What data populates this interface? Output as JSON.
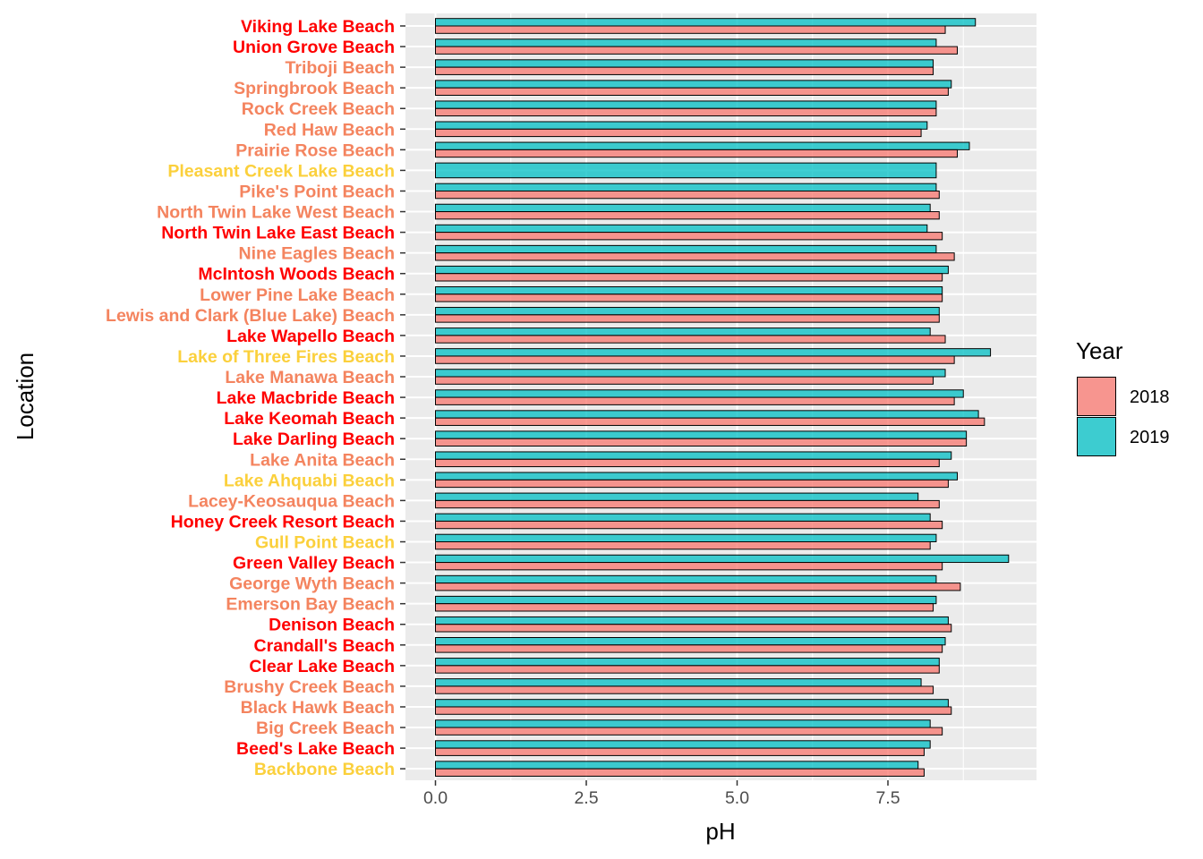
{
  "chart_data": {
    "type": "bar",
    "orientation": "horizontal",
    "xlabel": "pH",
    "ylabel": "Location",
    "xlim": [
      0,
      10
    ],
    "x_ticks": [
      "0.0",
      "2.5",
      "5.0",
      "7.5"
    ],
    "x_tick_values": [
      0,
      2.5,
      5,
      7.5
    ],
    "grid": true,
    "legend": {
      "title": "Year",
      "position": "right"
    },
    "colors": {
      "2018": "#F8766D",
      "2019": "#00BFC4",
      "label_red": "#FF0000",
      "label_salmon": "#F4845F",
      "label_yellow": "#FBD03C",
      "panel_bg": "#EBEBEB"
    },
    "categories": [
      "Viking Lake Beach",
      "Union Grove Beach",
      "Triboji Beach",
      "Springbrook Beach",
      "Rock Creek Beach",
      "Red Haw Beach",
      "Prairie Rose Beach",
      "Pleasant Creek Lake Beach",
      "Pike's Point Beach",
      "North Twin Lake West Beach",
      "North Twin Lake East Beach",
      "Nine Eagles Beach",
      "McIntosh Woods Beach",
      "Lower Pine Lake Beach",
      "Lewis and Clark (Blue Lake) Beach",
      "Lake Wapello Beach",
      "Lake of Three Fires Beach",
      "Lake Manawa Beach",
      "Lake Macbride Beach",
      "Lake Keomah Beach",
      "Lake Darling Beach",
      "Lake Anita Beach",
      "Lake Ahquabi Beach",
      "Lacey-Keosauqua Beach",
      "Honey Creek Resort Beach",
      "Gull Point Beach",
      "Green Valley Beach",
      "George Wyth Beach",
      "Emerson Bay Beach",
      "Denison Beach",
      "Crandall's Beach",
      "Clear Lake Beach",
      "Brushy Creek Beach",
      "Black Hawk Beach",
      "Big Creek Beach",
      "Beed's Lake Beach",
      "Backbone Beach"
    ],
    "label_colors": [
      "red",
      "red",
      "salmon",
      "salmon",
      "salmon",
      "salmon",
      "salmon",
      "yellow",
      "salmon",
      "salmon",
      "red",
      "salmon",
      "red",
      "salmon",
      "salmon",
      "red",
      "yellow",
      "salmon",
      "red",
      "red",
      "red",
      "salmon",
      "yellow",
      "salmon",
      "red",
      "yellow",
      "red",
      "salmon",
      "salmon",
      "red",
      "red",
      "red",
      "salmon",
      "salmon",
      "salmon",
      "red",
      "yellow"
    ],
    "series": [
      {
        "name": "2018",
        "values": [
          8.45,
          8.65,
          8.25,
          8.5,
          8.3,
          8.05,
          8.65,
          null,
          8.35,
          8.35,
          8.4,
          8.6,
          8.4,
          8.4,
          8.35,
          8.45,
          8.6,
          8.25,
          8.6,
          9.1,
          8.8,
          8.35,
          8.5,
          8.35,
          8.4,
          8.2,
          8.4,
          8.7,
          8.25,
          8.55,
          8.4,
          8.35,
          8.25,
          8.55,
          8.4,
          8.1,
          8.1
        ]
      },
      {
        "name": "2019",
        "values": [
          8.95,
          8.3,
          8.25,
          8.55,
          8.3,
          8.15,
          8.85,
          8.3,
          8.3,
          8.2,
          8.15,
          8.3,
          8.5,
          8.4,
          8.35,
          8.2,
          9.2,
          8.45,
          8.75,
          9.0,
          8.8,
          8.55,
          8.65,
          8.0,
          8.2,
          8.3,
          9.5,
          8.3,
          8.3,
          8.5,
          8.45,
          8.35,
          8.05,
          8.5,
          8.2,
          8.2,
          8.0
        ]
      }
    ]
  }
}
